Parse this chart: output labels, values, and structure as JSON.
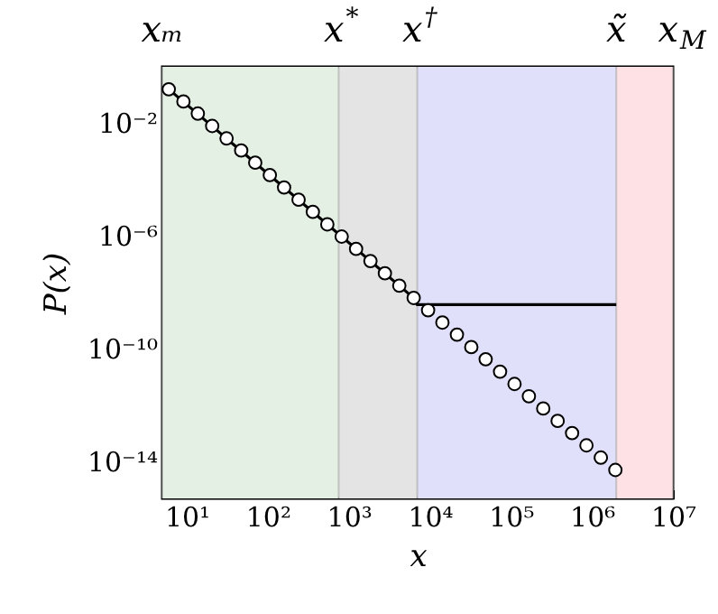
{
  "chart_data": {
    "type": "scatter",
    "xlabel": "x",
    "ylabel": "P(x)",
    "log": "xy",
    "xlim": [
      5,
      10000000
    ],
    "ylim": [
      5e-16,
      1
    ],
    "xticks": [
      {
        "value": 10,
        "label": "10¹"
      },
      {
        "value": 100,
        "label": "10²"
      },
      {
        "value": 1000,
        "label": "10³"
      },
      {
        "value": 10000,
        "label": "10⁴"
      },
      {
        "value": 100000,
        "label": "10⁵"
      },
      {
        "value": 1000000,
        "label": "10⁶"
      },
      {
        "value": 10000000,
        "label": "10⁷"
      }
    ],
    "yticks": [
      {
        "value": 0.01,
        "label": "10⁻²"
      },
      {
        "value": 1e-06,
        "label": "10⁻⁶"
      },
      {
        "value": 1e-10,
        "label": "10⁻¹⁰"
      },
      {
        "value": 1e-14,
        "label": "10⁻¹⁴"
      }
    ],
    "grid": false,
    "bands": [
      {
        "axis": "x",
        "from": 5,
        "to": 750,
        "color": "#e3f0e3"
      },
      {
        "axis": "x",
        "from": 750,
        "to": 7000,
        "color": "#e4e4e4"
      },
      {
        "axis": "x",
        "from": 7000,
        "to": 2000000,
        "color": "#e0e0fb"
      },
      {
        "axis": "x",
        "from": 2000000,
        "to": 10000000,
        "color": "#fde1e4"
      }
    ],
    "ref_lines": [
      {
        "axis": "x",
        "value": 5,
        "label": "xₘ"
      },
      {
        "axis": "x",
        "value": 750,
        "label": "x$^{*}$"
      },
      {
        "axis": "x",
        "value": 7000,
        "label": "x$^{†}$"
      },
      {
        "axis": "x",
        "value": 2000000,
        "label": "x̃"
      },
      {
        "axis": "x",
        "value": 10000000,
        "label": "x$_{M}$"
      }
    ],
    "series": [
      {
        "type": "line",
        "marker": "none",
        "color": "#000000",
        "x": [
          6,
          5500,
          7000,
          2000000
        ],
        "values": [
          0.16,
          9e-09,
          3.7e-09,
          3.7e-09
        ]
      },
      {
        "marker": "circle",
        "color": "#000000",
        "x": [
          6.0,
          9.1,
          13.7,
          20.6,
          31,
          47,
          70,
          106,
          159,
          240,
          360,
          543,
          817,
          1230,
          1850,
          2790,
          4200,
          6320,
          9520,
          14300,
          21600,
          32500,
          48900,
          73600,
          111000,
          167000,
          251000,
          378000,
          570000,
          857000,
          1290000,
          1950000
        ],
        "values": [
          0.16,
          0.059,
          0.022,
          0.008,
          0.0029,
          0.00108,
          0.0004,
          0.000145,
          5.3e-05,
          1.95e-05,
          7.2e-06,
          2.6e-06,
          9.6e-07,
          3.5e-07,
          1.3e-07,
          4.8e-08,
          1.75e-08,
          6.4e-09,
          2.35e-09,
          8.6e-10,
          3.2e-10,
          1.16e-10,
          4.3e-11,
          1.56e-11,
          5.7e-12,
          2.1e-12,
          7.7e-13,
          2.8e-13,
          1.04e-13,
          3.8e-14,
          1.4e-14,
          5.1e-15
        ]
      }
    ]
  }
}
